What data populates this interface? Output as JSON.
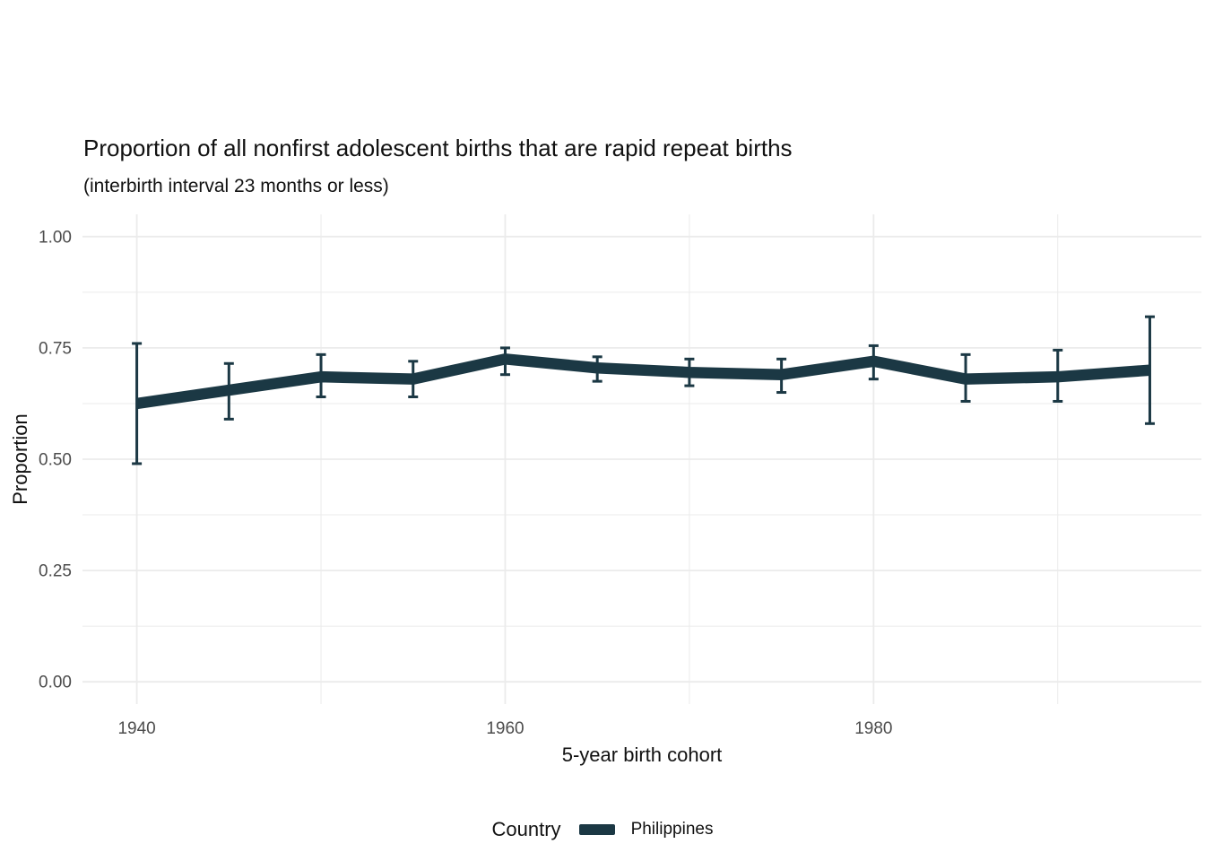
{
  "figure": {
    "background": "#ffffff"
  },
  "chart_data": {
    "type": "line",
    "title": "Proportion of all nonfirst adolescent births that are rapid repeat births",
    "subtitle": "(interbirth interval 23 months or less)",
    "xlabel": "5-year birth cohort",
    "ylabel": "Proportion",
    "legend": {
      "title": "Country",
      "position": "bottom"
    },
    "series": [
      {
        "name": "Philippines",
        "color": "#1b3844",
        "x": [
          1940,
          1945,
          1950,
          1955,
          1960,
          1965,
          1970,
          1975,
          1980,
          1985,
          1990,
          1995
        ],
        "y": [
          0.625,
          0.655,
          0.685,
          0.68,
          0.725,
          0.705,
          0.695,
          0.69,
          0.72,
          0.68,
          0.685,
          0.7
        ],
        "ci_low": [
          0.49,
          0.59,
          0.64,
          0.64,
          0.69,
          0.675,
          0.665,
          0.65,
          0.68,
          0.63,
          0.63,
          0.58
        ],
        "ci_high": [
          0.76,
          0.715,
          0.735,
          0.72,
          0.75,
          0.73,
          0.725,
          0.725,
          0.755,
          0.735,
          0.745,
          0.82
        ]
      }
    ],
    "x_ticks": [
      1940,
      1960,
      1980
    ],
    "x_tick_labels": [
      "1940",
      "1960",
      "1980"
    ],
    "x_minor_ticks": [
      1950,
      1970,
      1990
    ],
    "y_ticks": [
      0,
      0.25,
      0.5,
      0.75,
      1.0
    ],
    "y_tick_labels": [
      "0.00",
      "0.25",
      "0.50",
      "0.75",
      "1.00"
    ],
    "y_minor_ticks": [
      0.125,
      0.375,
      0.625,
      0.875
    ],
    "xlim": [
      1937.05,
      1997.8
    ],
    "ylim": [
      -0.05,
      1.05
    ],
    "grid": true,
    "grid_color": "#ebebeb",
    "tick_label_color": "#4d4d4d",
    "background": "#ffffff"
  }
}
